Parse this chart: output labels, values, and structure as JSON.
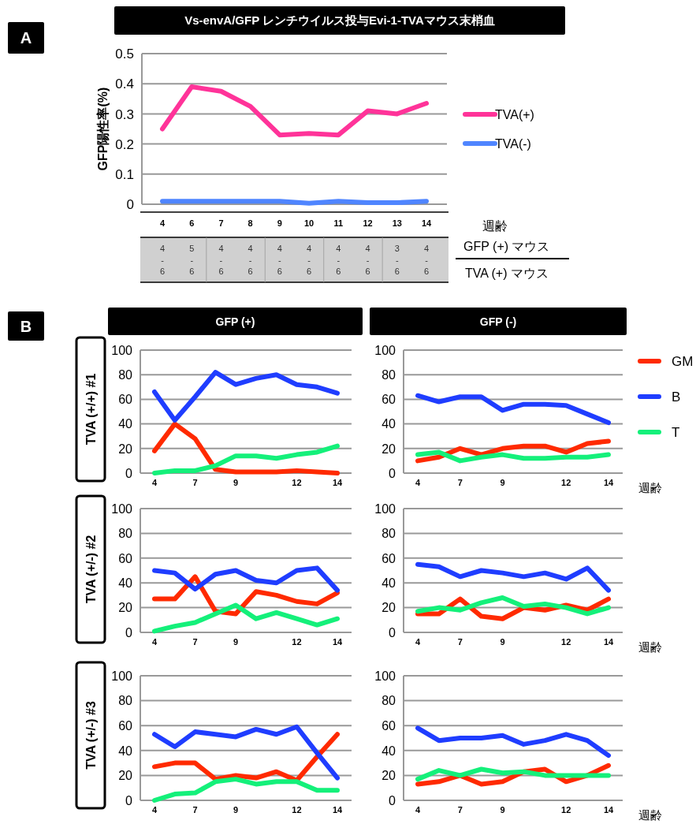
{
  "chart_data": [
    {
      "type": "line",
      "title": "Vs-envA/GFP レンチウイルス投与Evi-1-TVAマウス末梢血",
      "ylabel": "GFP陽性率(%)",
      "xlabel": "週齢",
      "categories": [
        "4",
        "6",
        "7",
        "8",
        "9",
        "10",
        "11",
        "12",
        "13",
        "14"
      ],
      "series": [
        {
          "name": "TVA(+)",
          "color": "#ff3399",
          "values": [
            0.25,
            0.39,
            0.375,
            0.325,
            0.23,
            0.235,
            0.23,
            0.31,
            0.3,
            0.335
          ]
        },
        {
          "name": "TVA(-)",
          "color": "#4f85ff",
          "values": [
            0.01,
            0.01,
            0.01,
            0.01,
            0.01,
            0.003,
            0.01,
            0.005,
            0.005,
            0.01
          ]
        }
      ],
      "ylim": [
        0,
        0.5
      ],
      "yticks": [
        0,
        0.1,
        0.2,
        0.3,
        0.4,
        0.5
      ],
      "grid": "y",
      "legend": "right",
      "annotations": [
        "A",
        "4\n-\n6",
        "5\n-\n6",
        "4\n-\n6",
        "4\n-\n6",
        "4\n-\n6",
        "4\n-\n6",
        "4\n-\n6",
        "4\n-\n6",
        "3\n-\n6",
        "4\n-\n6",
        "GFP (+) マウス",
        "TVA (+) マウス"
      ]
    },
    {
      "type": "line",
      "title": "GFP (+)",
      "ylabel": "TVA (+/+) #1",
      "categories": [
        "4",
        null,
        "7",
        null,
        "9",
        null,
        null,
        "12",
        null,
        "14"
      ],
      "series": [
        {
          "color": "#ff2a00",
          "values": [
            18,
            40,
            28,
            3,
            1,
            1,
            1,
            2,
            1,
            0
          ]
        },
        {
          "color": "#1f3dff",
          "values": [
            66,
            43,
            62,
            82,
            72,
            77,
            80,
            72,
            70,
            65
          ]
        },
        {
          "color": "#14f07a",
          "values": [
            0,
            2,
            2,
            6,
            14,
            14,
            12,
            15,
            17,
            22
          ]
        }
      ],
      "ylim": [
        0,
        100
      ],
      "yticks": [
        0,
        20,
        40,
        60,
        80,
        100
      ],
      "grid": "y",
      "annotations": [
        "B"
      ]
    },
    {
      "type": "line",
      "title": "GFP (-)",
      "xlabel": "週齢",
      "categories": [
        "4",
        null,
        "7",
        null,
        "9",
        null,
        null,
        "12",
        null,
        "14"
      ],
      "series": [
        {
          "name": "GM",
          "color": "#ff2a00",
          "values": [
            10,
            13,
            20,
            15,
            20,
            22,
            22,
            17,
            24,
            26
          ]
        },
        {
          "name": "B",
          "color": "#1f3dff",
          "values": [
            63,
            58,
            62,
            62,
            51,
            56,
            56,
            55,
            48,
            41
          ]
        },
        {
          "name": "T",
          "color": "#14f07a",
          "values": [
            15,
            17,
            10,
            13,
            15,
            12,
            12,
            13,
            13,
            15
          ]
        }
      ],
      "ylim": [
        0,
        100
      ],
      "yticks": [
        0,
        20,
        40,
        60,
        80,
        100
      ],
      "grid": "y",
      "legend": "right"
    },
    {
      "type": "line",
      "ylabel": "TVA (+/-) #2",
      "categories": [
        "4",
        null,
        "7",
        null,
        "9",
        null,
        null,
        "12",
        null,
        "14"
      ],
      "series": [
        {
          "color": "#ff2a00",
          "values": [
            27,
            27,
            45,
            17,
            15,
            33,
            30,
            25,
            23,
            32
          ]
        },
        {
          "color": "#1f3dff",
          "values": [
            50,
            48,
            35,
            47,
            50,
            42,
            40,
            50,
            52,
            34
          ]
        },
        {
          "color": "#14f07a",
          "values": [
            1,
            5,
            8,
            15,
            22,
            11,
            16,
            11,
            6,
            11
          ]
        }
      ],
      "ylim": [
        0,
        100
      ],
      "yticks": [
        0,
        20,
        40,
        60,
        80,
        100
      ],
      "grid": "y"
    },
    {
      "type": "line",
      "xlabel": "週齢",
      "categories": [
        "4",
        null,
        "7",
        null,
        "9",
        null,
        null,
        "12",
        null,
        "14"
      ],
      "series": [
        {
          "color": "#ff2a00",
          "values": [
            15,
            15,
            27,
            13,
            11,
            20,
            18,
            22,
            18,
            27
          ]
        },
        {
          "color": "#1f3dff",
          "values": [
            55,
            53,
            45,
            50,
            48,
            45,
            48,
            43,
            52,
            34
          ]
        },
        {
          "color": "#14f07a",
          "values": [
            17,
            20,
            18,
            24,
            28,
            21,
            23,
            20,
            15,
            20
          ]
        }
      ],
      "ylim": [
        0,
        100
      ],
      "yticks": [
        0,
        20,
        40,
        60,
        80,
        100
      ],
      "grid": "y"
    },
    {
      "type": "line",
      "ylabel": "TVA (+/-) #3",
      "categories": [
        "4",
        null,
        "7",
        null,
        "9",
        null,
        null,
        "12",
        null,
        "14"
      ],
      "series": [
        {
          "color": "#ff2a00",
          "values": [
            27,
            30,
            30,
            17,
            20,
            18,
            23,
            16,
            35,
            53
          ]
        },
        {
          "color": "#1f3dff",
          "values": [
            53,
            43,
            55,
            53,
            51,
            57,
            53,
            59,
            38,
            18
          ]
        },
        {
          "color": "#14f07a",
          "values": [
            0,
            5,
            6,
            15,
            17,
            13,
            15,
            15,
            8,
            8
          ]
        }
      ],
      "ylim": [
        0,
        100
      ],
      "yticks": [
        0,
        20,
        40,
        60,
        80,
        100
      ],
      "grid": "y"
    },
    {
      "type": "line",
      "xlabel": "週齢",
      "categories": [
        "4",
        null,
        "7",
        null,
        "9",
        null,
        null,
        "12",
        null,
        "14"
      ],
      "series": [
        {
          "color": "#ff2a00",
          "values": [
            13,
            15,
            20,
            13,
            15,
            23,
            25,
            15,
            20,
            28
          ]
        },
        {
          "color": "#1f3dff",
          "values": [
            58,
            48,
            50,
            50,
            52,
            45,
            48,
            53,
            48,
            36
          ]
        },
        {
          "color": "#14f07a",
          "values": [
            17,
            24,
            20,
            25,
            22,
            23,
            20,
            20,
            20,
            20
          ]
        }
      ],
      "ylim": [
        0,
        100
      ],
      "yticks": [
        0,
        20,
        40,
        60,
        80,
        100
      ],
      "grid": "y"
    }
  ]
}
